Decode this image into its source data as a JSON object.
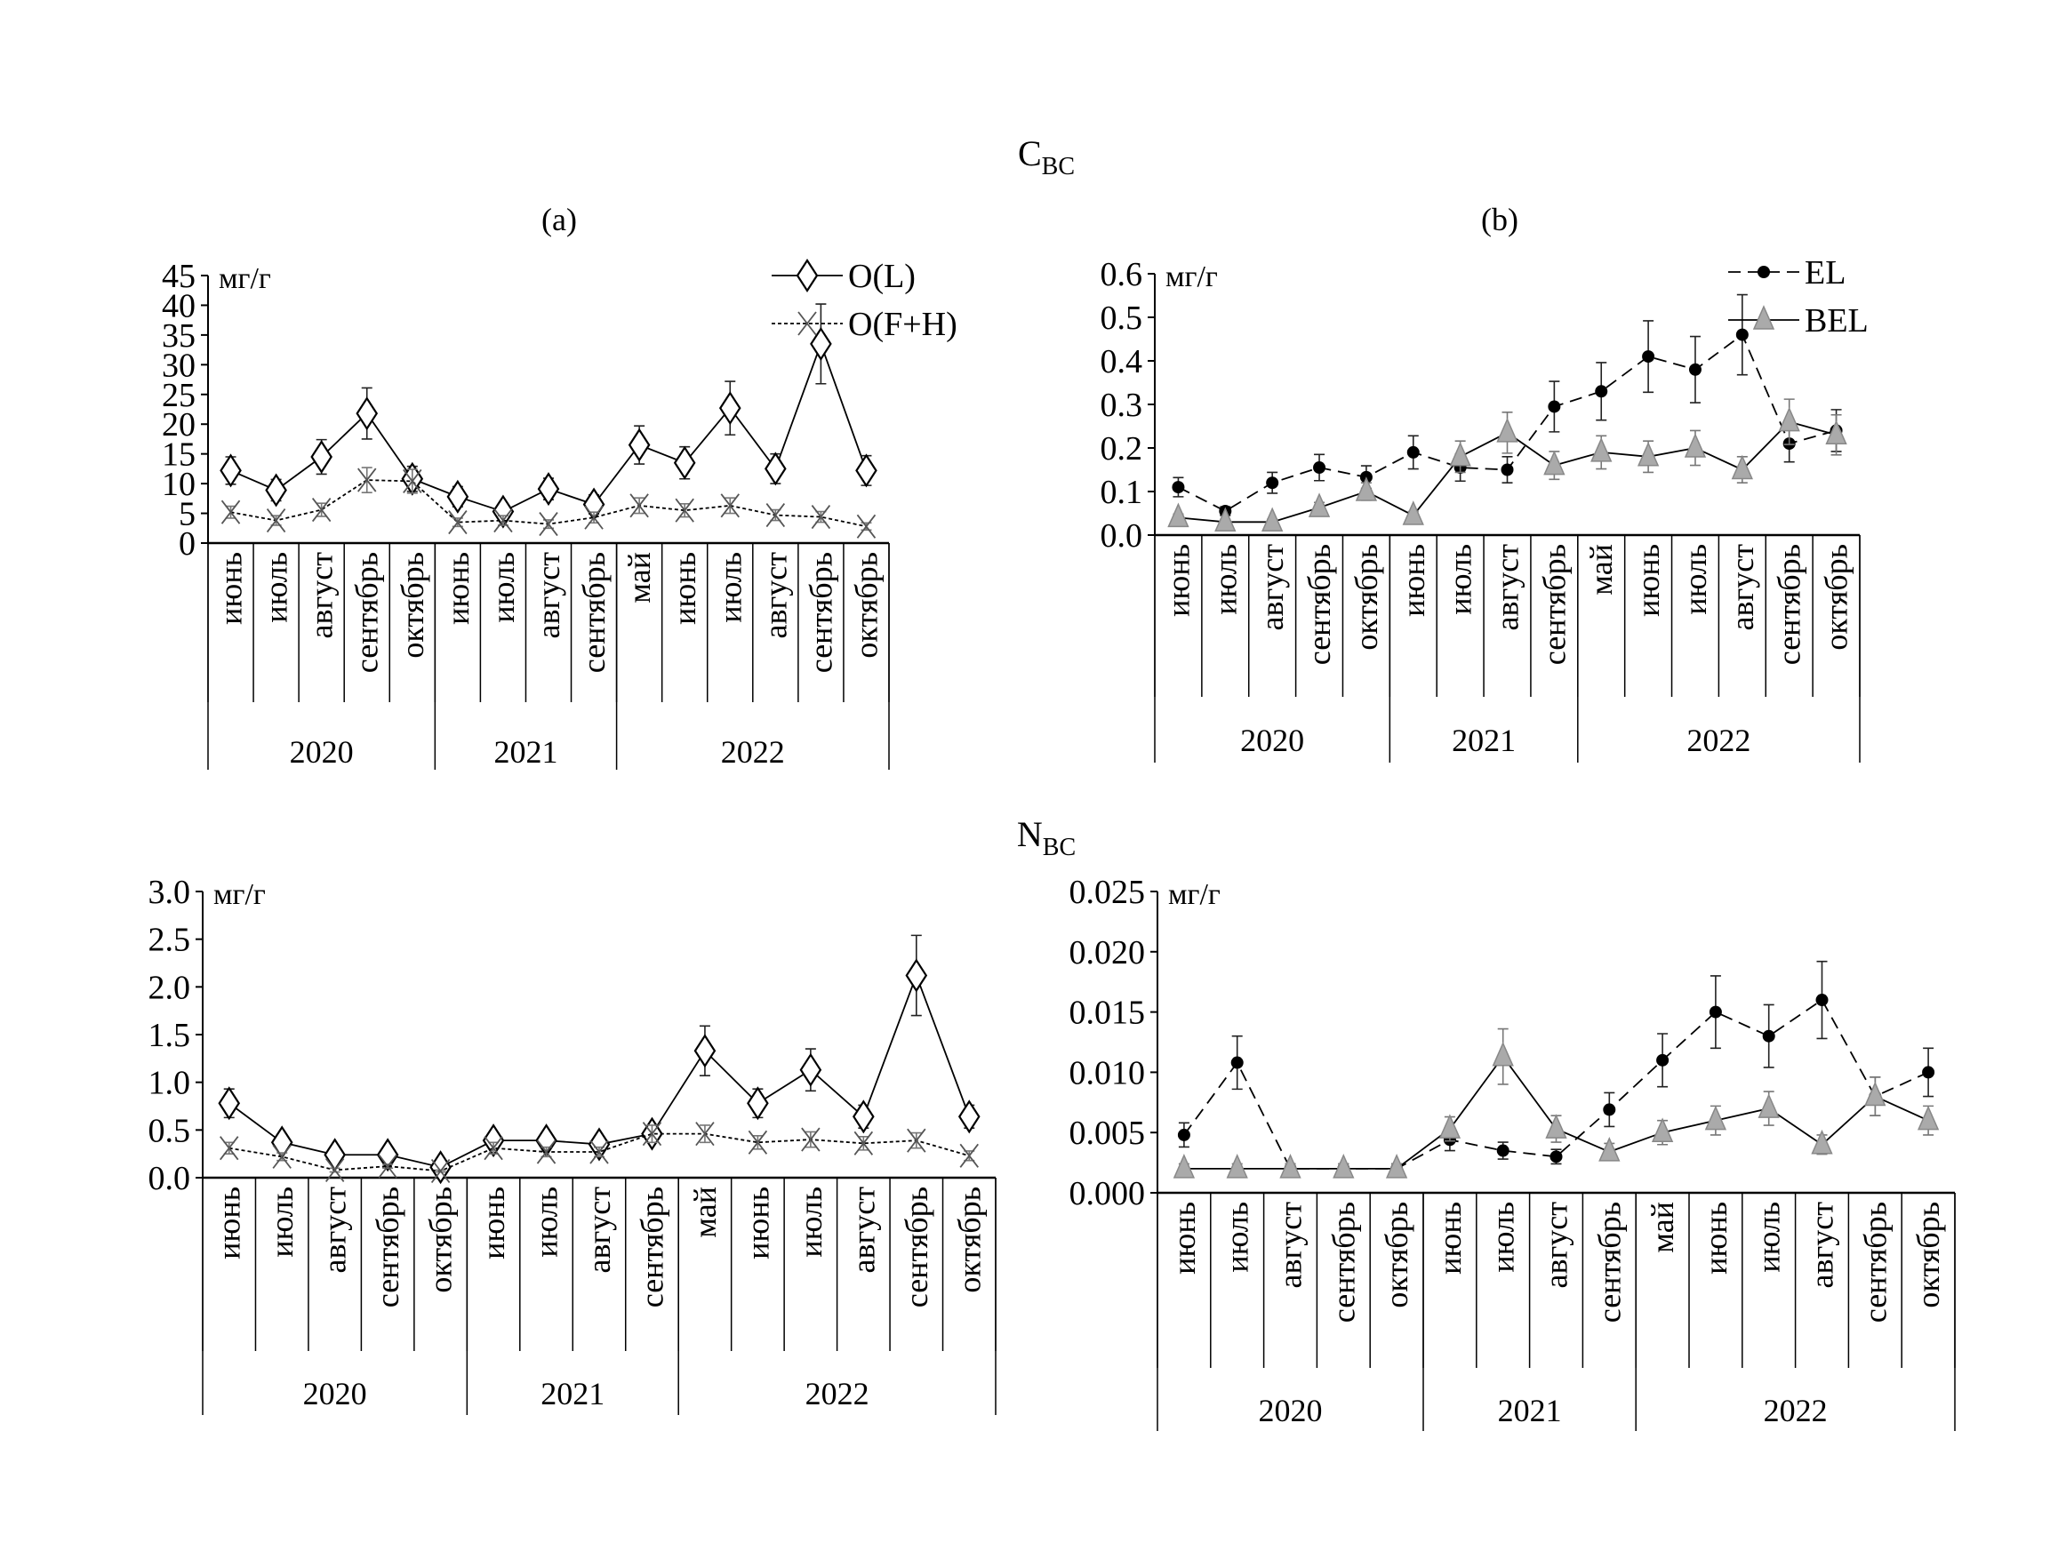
{
  "titles": {
    "c_main": "C",
    "c_sub": "ВС",
    "n_main": "N",
    "n_sub": "ВС",
    "panel_a": "(a)",
    "panel_b": "(b)"
  },
  "chart_data": [
    {
      "id": "c-a",
      "type": "line",
      "unit": "мг/г",
      "ylim": [
        0,
        45
      ],
      "yticks": [
        "0",
        "5",
        "10",
        "15",
        "20",
        "25",
        "30",
        "35",
        "40",
        "45"
      ],
      "categories": [
        "июнь",
        "июль",
        "август",
        "сентябрь",
        "октябрь",
        "июнь",
        "июль",
        "август",
        "сентябрь",
        "май",
        "июнь",
        "июль",
        "август",
        "сентябрь",
        "октябрь"
      ],
      "years": [
        {
          "label": "2020",
          "count": 5
        },
        {
          "label": "2021",
          "count": 4
        },
        {
          "label": "2022",
          "count": 6
        }
      ],
      "legend": "top-right",
      "series": [
        {
          "name": "O(L)",
          "marker": "diamond",
          "line": "solid",
          "values": [
            12.2,
            8.9,
            14.5,
            21.8,
            10.8,
            7.8,
            5.3,
            9.1,
            6.5,
            16.5,
            13.5,
            22.7,
            12.5,
            33.5,
            12.2
          ],
          "errors": [
            2.3,
            1.8,
            2.9,
            4.3,
            2.1,
            1.7,
            1.2,
            1.8,
            1.6,
            3.2,
            2.7,
            4.5,
            2.5,
            6.7,
            2.5
          ]
        },
        {
          "name": "O(F+H)",
          "marker": "x",
          "line": "dotted",
          "values": [
            5.2,
            3.8,
            5.6,
            10.6,
            10.4,
            3.5,
            3.8,
            3.2,
            4.3,
            6.3,
            5.5,
            6.3,
            4.7,
            4.4,
            2.8
          ],
          "errors": [
            1.0,
            0.8,
            1.1,
            2.1,
            2.0,
            0.7,
            0.8,
            0.7,
            0.9,
            1.3,
            1.1,
            1.3,
            0.9,
            0.9,
            0.6
          ]
        }
      ]
    },
    {
      "id": "c-b",
      "type": "line",
      "unit": "мг/г",
      "ylim": [
        0,
        0.6
      ],
      "yticks": [
        "0.0",
        "0.1",
        "0.2",
        "0.3",
        "0.4",
        "0.5",
        "0.6"
      ],
      "categories": [
        "июнь",
        "июль",
        "август",
        "сентябрь",
        "октябрь",
        "июнь",
        "июль",
        "август",
        "сентябрь",
        "май",
        "июнь",
        "июль",
        "август",
        "сентябрь",
        "октябрь"
      ],
      "years": [
        {
          "label": "2020",
          "count": 5
        },
        {
          "label": "2021",
          "count": 4
        },
        {
          "label": "2022",
          "count": 6
        }
      ],
      "legend": "top-right",
      "series": [
        {
          "name": "EL",
          "marker": "circle",
          "line": "dashed",
          "values": [
            0.11,
            0.055,
            0.12,
            0.155,
            0.133,
            0.19,
            0.155,
            0.15,
            0.295,
            0.33,
            0.41,
            0.38,
            0.46,
            0.21,
            0.24
          ],
          "errors": [
            0.022,
            0.01,
            0.024,
            0.03,
            0.026,
            0.038,
            0.031,
            0.03,
            0.058,
            0.066,
            0.082,
            0.076,
            0.092,
            0.042,
            0.048
          ]
        },
        {
          "name": "BEL",
          "marker": "triangle",
          "line": "solid",
          "values": [
            0.04,
            0.03,
            0.03,
            0.063,
            0.1,
            0.045,
            0.18,
            0.235,
            0.16,
            0.19,
            0.18,
            0.2,
            0.15,
            0.26,
            0.23
          ],
          "errors": [
            0.008,
            0.006,
            0.006,
            0.012,
            0.02,
            0.009,
            0.036,
            0.047,
            0.032,
            0.038,
            0.036,
            0.04,
            0.03,
            0.052,
            0.046
          ]
        }
      ]
    },
    {
      "id": "n-a",
      "type": "line",
      "unit": "мг/г",
      "ylim": [
        0,
        3.0
      ],
      "yticks": [
        "0.0",
        "0.5",
        "1.0",
        "1.5",
        "2.0",
        "2.5",
        "3.0"
      ],
      "categories": [
        "июнь",
        "июль",
        "август",
        "сентябрь",
        "октябрь",
        "июнь",
        "июль",
        "август",
        "сентябрь",
        "май",
        "июнь",
        "июль",
        "август",
        "сентябрь",
        "октябрь"
      ],
      "years": [
        {
          "label": "2020",
          "count": 5
        },
        {
          "label": "2021",
          "count": 4
        },
        {
          "label": "2022",
          "count": 6
        }
      ],
      "series": [
        {
          "name": "O(L)",
          "marker": "diamond",
          "line": "solid",
          "values": [
            0.78,
            0.37,
            0.24,
            0.24,
            0.11,
            0.39,
            0.39,
            0.35,
            0.46,
            1.33,
            0.78,
            1.13,
            0.64,
            2.12,
            0.64
          ],
          "errors": [
            0.15,
            0.07,
            0.05,
            0.05,
            0.02,
            0.08,
            0.08,
            0.07,
            0.09,
            0.26,
            0.15,
            0.22,
            0.12,
            0.42,
            0.12
          ]
        },
        {
          "name": "O(F+H)",
          "marker": "x",
          "line": "dotted",
          "values": [
            0.31,
            0.22,
            0.08,
            0.12,
            0.07,
            0.31,
            0.27,
            0.27,
            0.46,
            0.46,
            0.37,
            0.4,
            0.36,
            0.39,
            0.23
          ],
          "errors": [
            0.06,
            0.04,
            0.02,
            0.02,
            0.01,
            0.06,
            0.05,
            0.05,
            0.09,
            0.09,
            0.07,
            0.08,
            0.07,
            0.08,
            0.05
          ]
        }
      ]
    },
    {
      "id": "n-b",
      "type": "line",
      "unit": "мг/г",
      "ylim": [
        0,
        0.025
      ],
      "yticks": [
        "0.000",
        "0.005",
        "0.010",
        "0.015",
        "0.020",
        "0.025"
      ],
      "categories": [
        "июнь",
        "июль",
        "август",
        "сентябрь",
        "октябрь",
        "июнь",
        "июль",
        "август",
        "сентябрь",
        "май",
        "июнь",
        "июль",
        "август",
        "сентябрь",
        "октябрь"
      ],
      "years": [
        {
          "label": "2020",
          "count": 5
        },
        {
          "label": "2021",
          "count": 4
        },
        {
          "label": "2022",
          "count": 6
        }
      ],
      "series": [
        {
          "name": "EL",
          "marker": "circle",
          "line": "dashed",
          "values": [
            0.0048,
            0.0108,
            0.002,
            0.002,
            0.002,
            0.0044,
            0.0035,
            0.003,
            0.0069,
            0.011,
            0.015,
            0.013,
            0.016,
            0.008,
            0.01
          ],
          "errors": [
            0.001,
            0.0022,
            0.0004,
            0.0004,
            0.0004,
            0.0009,
            0.0007,
            0.0006,
            0.0014,
            0.0022,
            0.003,
            0.0026,
            0.0032,
            0.0016,
            0.002
          ]
        },
        {
          "name": "BEL",
          "marker": "triangle",
          "line": "solid",
          "values": [
            0.002,
            0.002,
            0.002,
            0.002,
            0.002,
            0.0053,
            0.0113,
            0.0053,
            0.0034,
            0.005,
            0.006,
            0.007,
            0.004,
            0.008,
            0.006
          ],
          "errors": [
            0.0004,
            0.0004,
            0.0004,
            0.0004,
            0.0004,
            0.001,
            0.0023,
            0.0011,
            0.0007,
            0.001,
            0.0012,
            0.0014,
            0.0008,
            0.0016,
            0.0012
          ]
        }
      ]
    }
  ]
}
